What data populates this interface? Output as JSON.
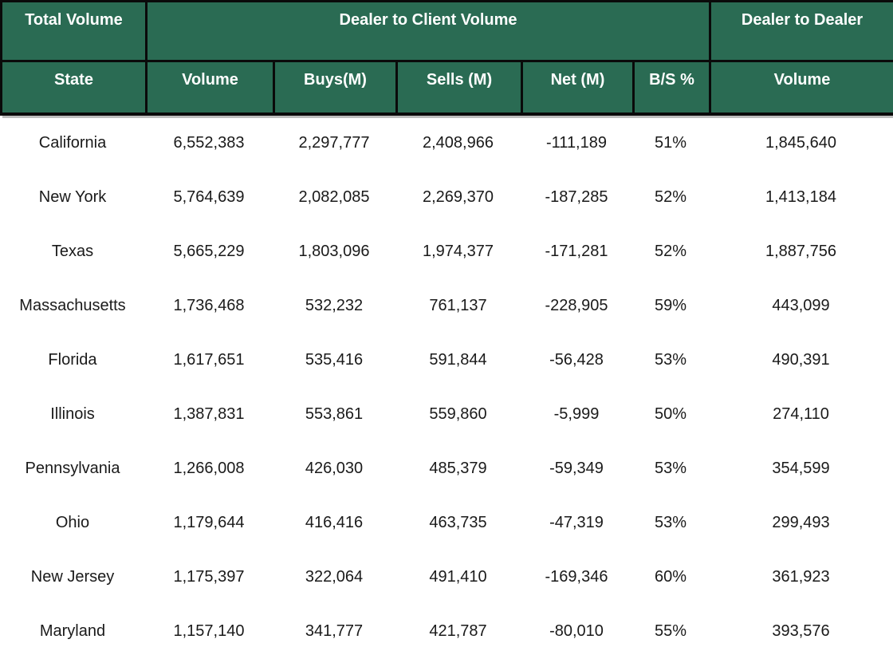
{
  "colors": {
    "header_background": "#2A6B53",
    "header_text": "#FFFFFF",
    "border": "#0A0A0A",
    "body_text": "#1A1A1A",
    "shadow": "#BDBDBD"
  },
  "chart_data": {
    "type": "table",
    "title": "",
    "group_headers": {
      "total_volume": "Total Volume",
      "dealer_to_client": "Dealer to Client Volume",
      "dealer_to_dealer": "Dealer to Dealer"
    },
    "columns": [
      "State",
      "Volume",
      "Buys(M)",
      "Sells (M)",
      "Net (M)",
      "B/S %",
      "Volume"
    ],
    "rows": [
      [
        "California",
        "6,552,383",
        "2,297,777",
        "2,408,966",
        "-111,189",
        "51%",
        "1,845,640"
      ],
      [
        "New York",
        "5,764,639",
        "2,082,085",
        "2,269,370",
        "-187,285",
        "52%",
        "1,413,184"
      ],
      [
        "Texas",
        "5,665,229",
        "1,803,096",
        "1,974,377",
        "-171,281",
        "52%",
        "1,887,756"
      ],
      [
        "Massachusetts",
        "1,736,468",
        "532,232",
        "761,137",
        "-228,905",
        "59%",
        "443,099"
      ],
      [
        "Florida",
        "1,617,651",
        "535,416",
        "591,844",
        "-56,428",
        "53%",
        "490,391"
      ],
      [
        "Illinois",
        "1,387,831",
        "553,861",
        "559,860",
        "-5,999",
        "50%",
        "274,110"
      ],
      [
        "Pennsylvania",
        "1,266,008",
        "426,030",
        "485,379",
        "-59,349",
        "53%",
        "354,599"
      ],
      [
        "Ohio",
        "1,179,644",
        "416,416",
        "463,735",
        "-47,319",
        "53%",
        "299,493"
      ],
      [
        "New Jersey",
        "1,175,397",
        "322,064",
        "491,410",
        "-169,346",
        "60%",
        "361,923"
      ],
      [
        "Maryland",
        "1,157,140",
        "341,777",
        "421,787",
        "-80,010",
        "55%",
        "393,576"
      ]
    ]
  }
}
